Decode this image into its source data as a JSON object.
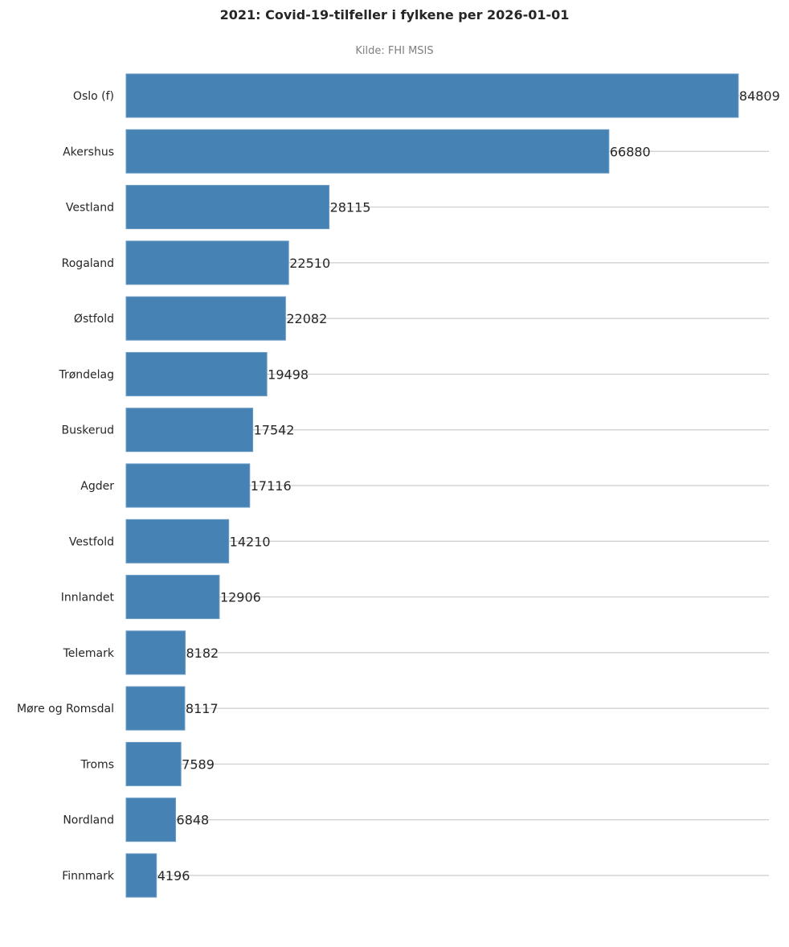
{
  "chart_data": {
    "type": "bar",
    "orientation": "horizontal",
    "title": "2021: Covid-19-tilfeller i fylkene per 2026-01-01",
    "subtitle": "Kilde: FHI MSIS",
    "xlabel": "",
    "ylabel": "",
    "xlim": [
      0,
      89050
    ],
    "grid": true,
    "bar_color": "#4682b4",
    "bar_edge_color": "#6a9ac4",
    "grid_color": "#cccccc",
    "categories": [
      "Oslo (f)",
      "Akershus",
      "Vestland",
      "Rogaland",
      "Østfold",
      "Trøndelag",
      "Buskerud",
      "Agder",
      "Vestfold",
      "Innlandet",
      "Telemark",
      "Møre og Romsdal",
      "Troms",
      "Nordland",
      "Finnmark"
    ],
    "values": [
      84809,
      66880,
      28115,
      22510,
      22082,
      19498,
      17542,
      17116,
      14210,
      12906,
      8182,
      8117,
      7589,
      6848,
      4196
    ],
    "data_labels": [
      "84809",
      "66880",
      "28115",
      "22510",
      "22082",
      "19498",
      "17542",
      "17116",
      "14210",
      "12906",
      "8182",
      "8117",
      "7589",
      "6848",
      "4196"
    ]
  }
}
